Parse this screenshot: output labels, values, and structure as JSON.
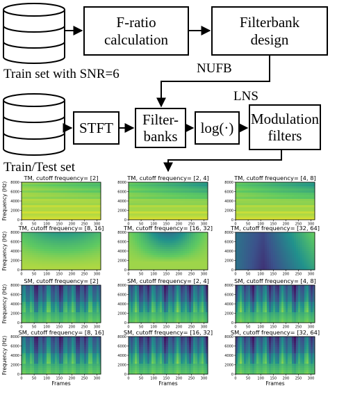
{
  "diagram": {
    "train_set_label": "Train set with SNR=6",
    "train_test_label": "Train/Test set",
    "fratio_label": "F-ratio calculation",
    "filterbank_design_label": "Filterbank design",
    "nufb_label": "NUFB",
    "lns_label": "LNS",
    "stft_label": "STFT",
    "filterbanks_label": "Filter-banks",
    "log_label": "log(·)",
    "modulation_label": "Modulation filters"
  },
  "panels": {
    "ylabel": "Frequency (Hz)",
    "xlabel": "Frames",
    "yticks": [
      "0",
      "2000",
      "4000",
      "6000",
      "8000"
    ],
    "xticks": [
      "0",
      "50",
      "100",
      "150",
      "200",
      "250",
      "300"
    ],
    "colormap": [
      "#440154",
      "#3b528b",
      "#21918c",
      "#5ec962",
      "#fde725"
    ],
    "grid": [
      [
        "TM, cutoff frequency= [2]",
        "TM, cutoff frequency= [2, 4]",
        "TM, cutoff frequency= [4, 8]"
      ],
      [
        "TM, cutoff frequency= [8, 16]",
        "TM, cutoff frequency= [16, 32]",
        "TM, cutoff frequency= [32, 64]"
      ],
      [
        "SM, cutoff frequency= [2]",
        "SM, cutoff frequency= [2, 4]",
        "SM, cutoff frequency= [4, 8]"
      ],
      [
        "SM, cutoff frequency= [8, 16]",
        "SM, cutoff frequency= [16, 32]",
        "SM, cutoff frequency= [32, 64]"
      ]
    ]
  }
}
